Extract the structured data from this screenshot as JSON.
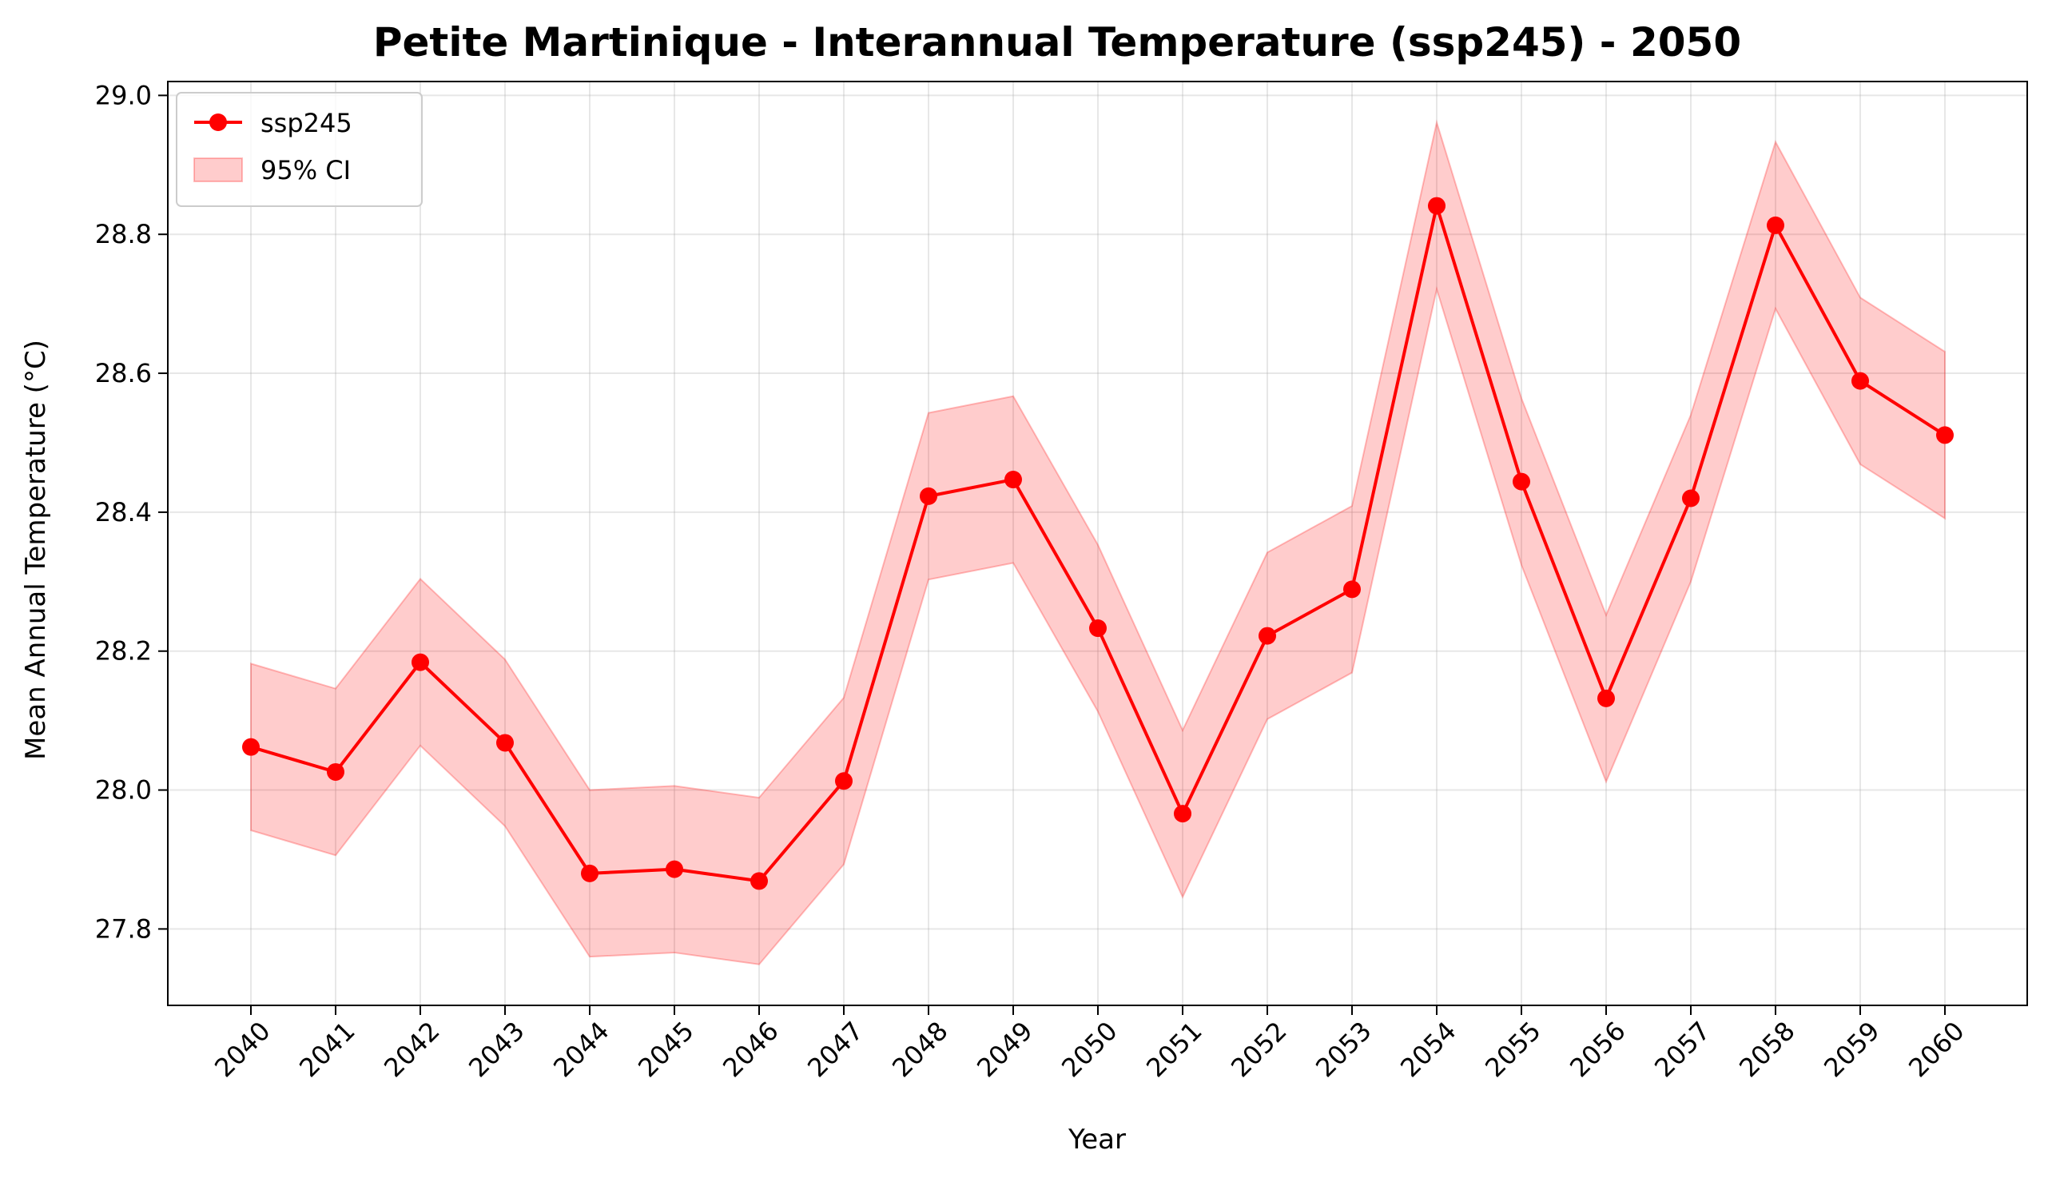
{
  "chart_data": {
    "type": "line",
    "title": "Petite Martinique - Interannual Temperature (ssp245) - 2050",
    "xlabel": "Year",
    "ylabel": "Mean Annual Temperature (°C)",
    "x": [
      "2040",
      "2041",
      "2042",
      "2043",
      "2044",
      "2045",
      "2046",
      "2047",
      "2048",
      "2049",
      "2050",
      "2051",
      "2052",
      "2053",
      "2054",
      "2055",
      "2056",
      "2057",
      "2058",
      "2059",
      "2060"
    ],
    "series": [
      {
        "name": "ssp245",
        "color": "#ff0000",
        "marker": "circle",
        "values": [
          28.062,
          28.026,
          28.184,
          28.068,
          27.88,
          27.886,
          27.869,
          28.013,
          28.423,
          28.447,
          28.233,
          27.966,
          28.222,
          28.289,
          28.841,
          28.444,
          28.132,
          28.42,
          28.813,
          28.589,
          28.511
        ]
      }
    ],
    "ci": {
      "name": "95% CI",
      "color": "#ff0000",
      "opacity": 0.2,
      "lower": [
        27.942,
        27.906,
        28.064,
        27.948,
        27.76,
        27.766,
        27.749,
        27.893,
        28.303,
        28.327,
        28.113,
        27.846,
        28.102,
        28.169,
        28.721,
        28.324,
        28.012,
        28.3,
        28.693,
        28.469,
        28.391
      ],
      "upper": [
        28.182,
        28.146,
        28.304,
        28.188,
        28.0,
        28.006,
        27.989,
        28.133,
        28.543,
        28.567,
        28.353,
        28.086,
        28.342,
        28.409,
        28.961,
        28.564,
        28.252,
        28.54,
        28.933,
        28.709,
        28.631
      ]
    },
    "yticks": [
      "27.8",
      "28.0",
      "28.2",
      "28.4",
      "28.6",
      "28.8",
      "29.0"
    ],
    "ylim": [
      27.69,
      29.02
    ],
    "grid": true,
    "legend_position": "top-left"
  }
}
